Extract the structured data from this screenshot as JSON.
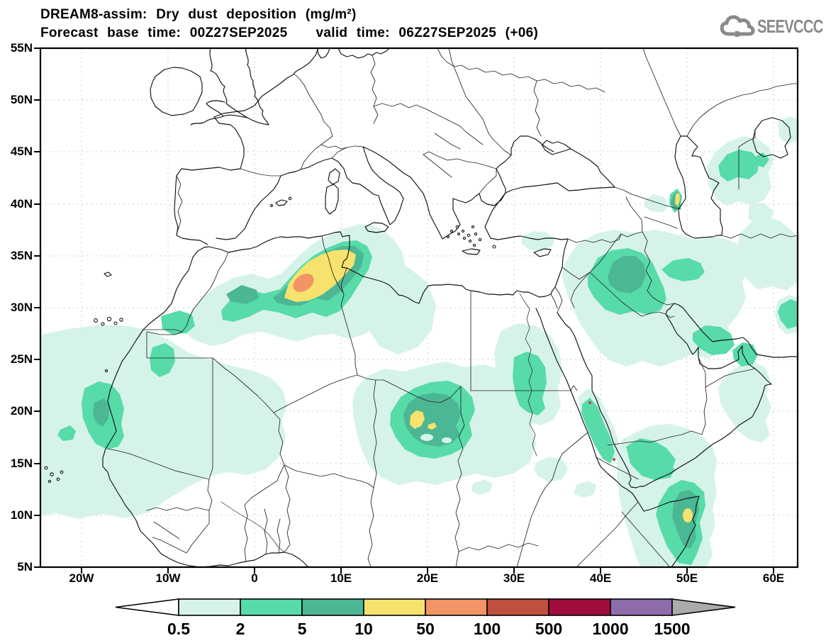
{
  "titles": {
    "line1": "DREAM8-assim: Dry dust deposition (mg/m²)",
    "forecast_base": "Forecast base time: 00Z27SEP2025",
    "valid": "valid time: 06Z27SEP2025 (+06)"
  },
  "logo": {
    "text": "SEEVCCC",
    "color": "#8a8a8a"
  },
  "map": {
    "y_axis_labels": [
      "55N",
      "50N",
      "45N",
      "40N",
      "35N",
      "30N",
      "25N",
      "20N",
      "15N",
      "10N",
      "5N"
    ],
    "x_axis_labels": [
      "20W",
      "10W",
      "0",
      "10E",
      "20E",
      "30E",
      "40E",
      "50E",
      "60E"
    ]
  },
  "colorbar": {
    "tick_labels": [
      "0.5",
      "2",
      "5",
      "10",
      "50",
      "100",
      "500",
      "1000",
      "1500"
    ],
    "segment_colors": [
      "#d6f3ea",
      "#57dba9",
      "#4cb795",
      "#f6e26c",
      "#f29465",
      "#bf4f3f",
      "#a00d3c",
      "#8e6cab"
    ],
    "under_arrow_color": "#ffffff",
    "over_arrow_color": "#ababab"
  },
  "chart_data": {
    "type": "filled_contour_map",
    "title": "DREAM8-assim: Dry dust deposition (mg/m²)",
    "forecast_base_time": "00Z27SEP2025",
    "valid_time": "06Z27SEP2025 (+06)",
    "units": "mg/m²",
    "levels": [
      0.5,
      2,
      5,
      10,
      50,
      100,
      500,
      1000,
      1500
    ],
    "palette": [
      "#d6f3ea",
      "#57dba9",
      "#4cb795",
      "#f6e26c",
      "#f29465",
      "#bf4f3f",
      "#a00d3c",
      "#8e6cab"
    ],
    "lon_ticks": [
      "20W",
      "10W",
      "0",
      "10E",
      "20E",
      "30E",
      "40E",
      "50E",
      "60E"
    ],
    "lat_ticks": [
      "55N",
      "50N",
      "45N",
      "40N",
      "35N",
      "30N",
      "25N",
      "20N",
      "15N",
      "10N",
      "5N"
    ],
    "grid": "dotted 5-degree latitude / 10-degree longitude",
    "notable_features": [
      {
        "region": "NE Algeria / Tunisia (approx 5E, 32N)",
        "max_band": "50-100"
      },
      {
        "region": "Chad / southern Libya (approx 18E, 18N)",
        "max_band": "10-50"
      },
      {
        "region": "Somalia / Horn of Africa (approx 50E, 9N)",
        "max_band": "10-50"
      },
      {
        "region": "Azerbaijan / west Caspian coast (approx 49E, 40N)",
        "max_band": "10-50"
      },
      {
        "region": "Iraq (approx 43E, 33N)",
        "max_band": "5-10"
      },
      {
        "region": "Mauritania / West Africa coast (approx 16W, 18N)",
        "max_band": "5-10"
      },
      {
        "region": "NE of Caspian Sea",
        "max_band": "2-5"
      },
      {
        "region": "Oman coast",
        "max_band": "2-5"
      }
    ]
  }
}
